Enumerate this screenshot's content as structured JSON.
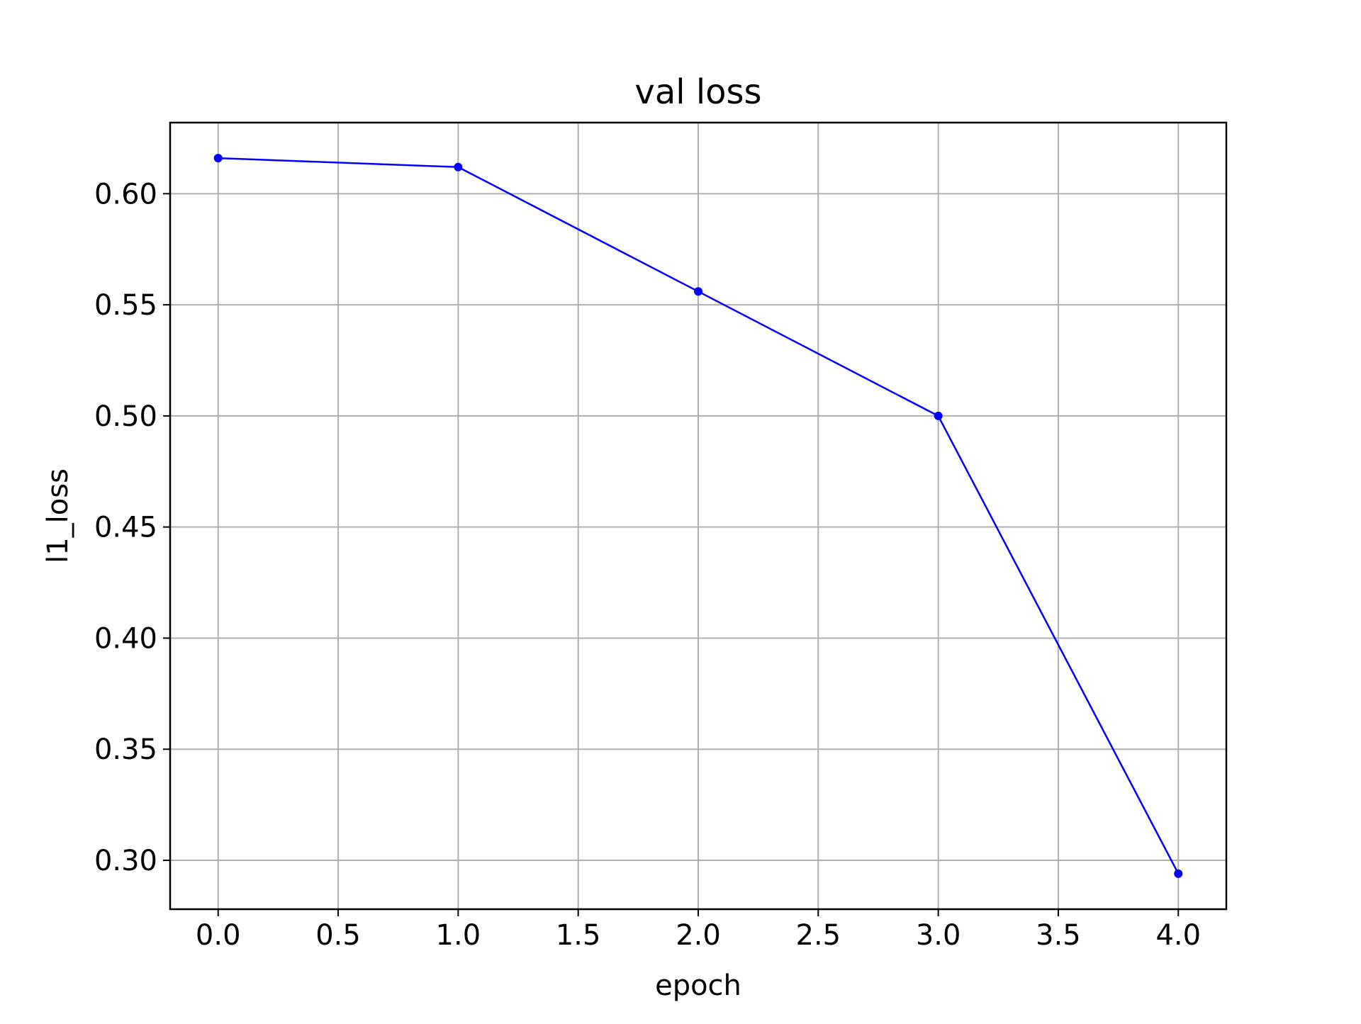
{
  "chart_data": {
    "type": "line",
    "title": "val loss",
    "xlabel": "epoch",
    "ylabel": "l1_loss",
    "xlim": [
      -0.2,
      4.2
    ],
    "ylim": [
      0.278,
      0.632
    ],
    "x_ticks": [
      "0.0",
      "0.5",
      "1.0",
      "1.5",
      "2.0",
      "2.5",
      "3.0",
      "3.5",
      "4.0"
    ],
    "x_tick_values": [
      0.0,
      0.5,
      1.0,
      1.5,
      2.0,
      2.5,
      3.0,
      3.5,
      4.0
    ],
    "y_ticks": [
      "0.30",
      "0.35",
      "0.40",
      "0.45",
      "0.50",
      "0.55",
      "0.60"
    ],
    "y_tick_values": [
      0.3,
      0.35,
      0.4,
      0.45,
      0.5,
      0.55,
      0.6
    ],
    "grid": true,
    "series": [
      {
        "x": [
          0,
          1,
          2,
          3,
          4
        ],
        "values": [
          0.616,
          0.612,
          0.556,
          0.5,
          0.294
        ],
        "color": "#0000ff",
        "marker": "circle"
      }
    ],
    "colors": {
      "grid": "#b0b0b0",
      "axes": "#000000",
      "background": "#ffffff"
    }
  }
}
